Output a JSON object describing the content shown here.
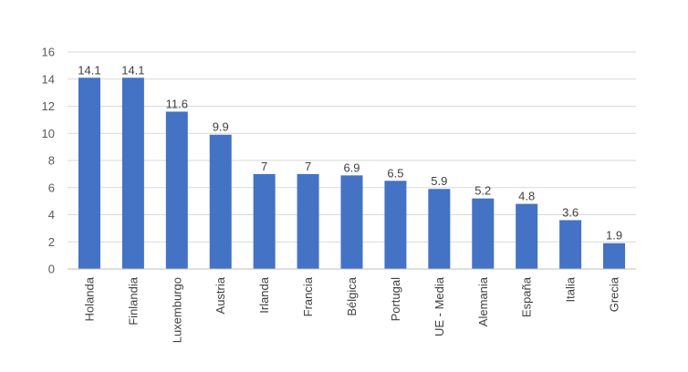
{
  "chart_data": {
    "type": "bar",
    "categories": [
      "Holanda",
      "Finlandia",
      "Luxemburgo",
      "Austria",
      "Irlanda",
      "Francia",
      "Bélgica",
      "Portugal",
      "UE - Media",
      "Alemania",
      "España",
      "Italia",
      "Grecia"
    ],
    "values": [
      14.1,
      14.1,
      11.6,
      9.9,
      7,
      7,
      6.9,
      6.5,
      5.9,
      5.2,
      4.8,
      3.6,
      1.9
    ],
    "value_labels": [
      "14.1",
      "14.1",
      "11.6",
      "9.9",
      "7",
      "7",
      "6.9",
      "6.5",
      "5.9",
      "5.2",
      "4.8",
      "3.6",
      "1.9"
    ],
    "y_ticks": [
      "0",
      "2",
      "4",
      "6",
      "8",
      "10",
      "12",
      "14",
      "16"
    ],
    "ylim": [
      0,
      16
    ],
    "grid": true,
    "legend": "none",
    "colors": {
      "bar": "#4472c4"
    }
  }
}
